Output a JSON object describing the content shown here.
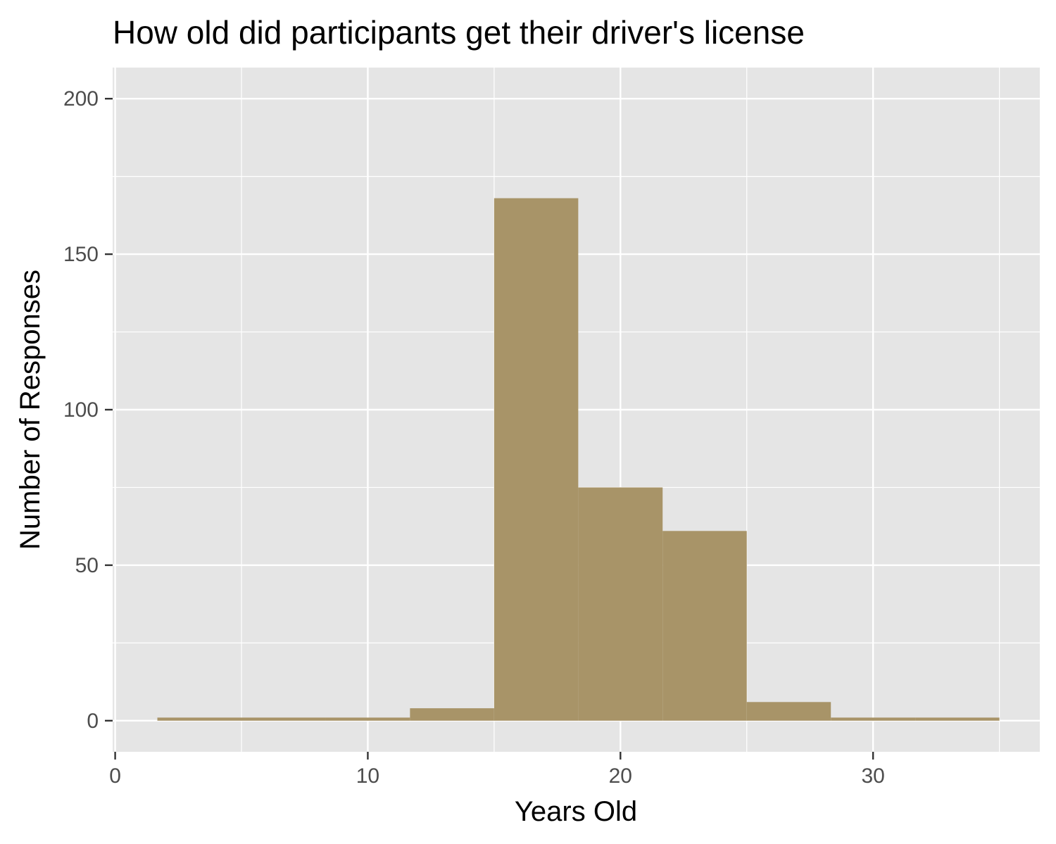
{
  "chart_data": {
    "type": "bar",
    "subtype": "histogram",
    "title": "How old did participants get their driver's license",
    "xlabel": "Years Old",
    "ylabel": "Number of Responses",
    "xlim": [
      -0.1,
      36.6
    ],
    "ylim": [
      -10,
      210
    ],
    "x_ticks": [
      0,
      10,
      20,
      30
    ],
    "x_tick_labels": [
      "0",
      "10",
      "20",
      "30"
    ],
    "y_ticks": [
      0,
      50,
      100,
      150,
      200
    ],
    "y_tick_labels": [
      "0",
      "50",
      "100",
      "150",
      "200"
    ],
    "grid": true,
    "bins": [
      {
        "start": 1.67,
        "end": 5.0,
        "count": 1
      },
      {
        "start": 5.0,
        "end": 8.33,
        "count": 1
      },
      {
        "start": 8.33,
        "end": 11.67,
        "count": 1
      },
      {
        "start": 11.67,
        "end": 15.0,
        "count": 4
      },
      {
        "start": 15.0,
        "end": 18.33,
        "count": 168
      },
      {
        "start": 18.33,
        "end": 21.67,
        "count": 75
      },
      {
        "start": 21.67,
        "end": 25.0,
        "count": 61
      },
      {
        "start": 25.0,
        "end": 28.33,
        "count": 6
      },
      {
        "start": 28.33,
        "end": 31.67,
        "count": 1
      },
      {
        "start": 31.67,
        "end": 35.0,
        "count": 1
      }
    ],
    "colors": {
      "bar_fill": "#A89468",
      "panel_background": "#E5E5E5",
      "grid": "#FFFFFF",
      "tick_mark": "#333333"
    }
  }
}
